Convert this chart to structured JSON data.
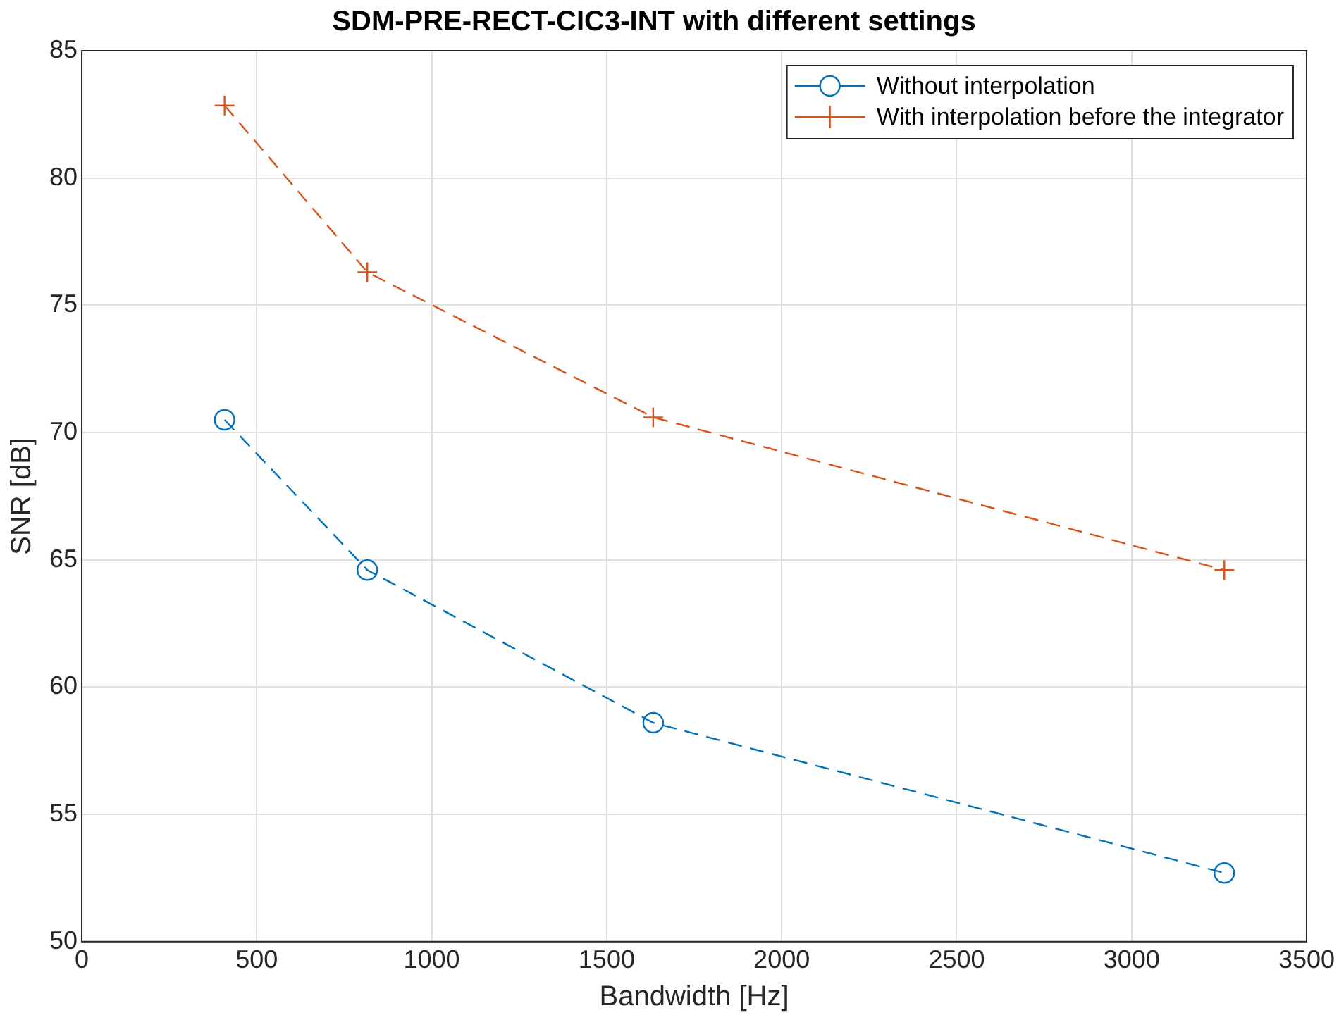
{
  "chart_data": {
    "type": "line",
    "title": "SDM-PRE-RECT-CIC3-INT with different settings",
    "xlabel": "Bandwidth [Hz]",
    "ylabel": "SNR [dB]",
    "x": [
      408,
      816,
      1633,
      3265
    ],
    "series": [
      {
        "name": "Without interpolation",
        "color": "#0072bd",
        "marker": "circle",
        "values": [
          70.5,
          64.6,
          58.6,
          52.7
        ]
      },
      {
        "name": "With interpolation before the integrator",
        "color": "#d95319",
        "marker": "cross",
        "values": [
          82.85,
          76.3,
          70.6,
          64.6
        ]
      }
    ],
    "xlim": [
      0,
      3500
    ],
    "xticks": [
      0,
      500,
      1000,
      1500,
      2000,
      2500,
      3000,
      3500
    ],
    "ylim": [
      50,
      85
    ],
    "yticks": [
      50,
      55,
      60,
      65,
      70,
      75,
      80,
      85
    ],
    "grid": true,
    "legend": "top right",
    "line_style": "dashed"
  }
}
